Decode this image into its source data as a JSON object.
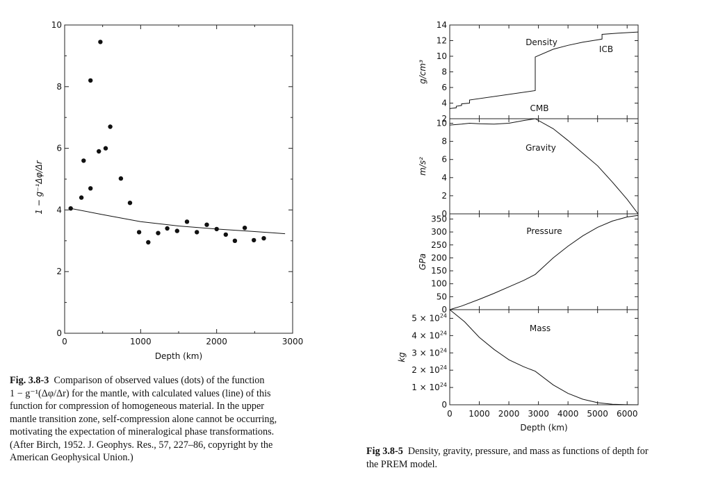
{
  "chart_data": [
    {
      "id": "fig-3-8-3",
      "type": "scatter",
      "xlabel": "Depth (km)",
      "ylabel": "1 − g⁻¹Δφ/Δr",
      "xlim": [
        0,
        3000
      ],
      "ylim": [
        0,
        10
      ],
      "xticks": [
        "0",
        "1000",
        "2000",
        "3000"
      ],
      "yticks": [
        "0",
        "2",
        "4",
        "6",
        "8",
        "10"
      ],
      "grid": false,
      "series": [
        {
          "kind": "points",
          "points": [
            [
              80,
              4.05
            ],
            [
              220,
              4.4
            ],
            [
              250,
              5.6
            ],
            [
              340,
              4.7
            ],
            [
              340,
              8.2
            ],
            [
              450,
              5.9
            ],
            [
              470,
              9.45
            ],
            [
              540,
              6.0
            ],
            [
              600,
              6.7
            ],
            [
              740,
              5.02
            ],
            [
              860,
              4.23
            ],
            [
              980,
              3.28
            ],
            [
              1100,
              2.95
            ],
            [
              1230,
              3.25
            ],
            [
              1350,
              3.4
            ],
            [
              1480,
              3.32
            ],
            [
              1610,
              3.62
            ],
            [
              1740,
              3.28
            ],
            [
              1870,
              3.52
            ],
            [
              2000,
              3.38
            ],
            [
              2120,
              3.2
            ],
            [
              2240,
              3.0
            ],
            [
              2370,
              3.42
            ],
            [
              2490,
              3.02
            ],
            [
              2620,
              3.08
            ]
          ]
        },
        {
          "kind": "line",
          "x": [
            80,
            500,
            1000,
            1500,
            2000,
            2500,
            2900
          ],
          "y": [
            4.05,
            3.85,
            3.62,
            3.48,
            3.38,
            3.3,
            3.23
          ]
        }
      ]
    },
    {
      "id": "fig-3-8-5",
      "type": "line",
      "xlabel": "Depth (km)",
      "xlim": [
        0,
        6371
      ],
      "xticks": [
        "0",
        "1000",
        "2000",
        "3000",
        "4000",
        "5000",
        "6000"
      ],
      "panels": [
        {
          "name": "Density",
          "ylabel": "g/cm³",
          "ylim": [
            2,
            14
          ],
          "yticks": [
            "2",
            "4",
            "6",
            "8",
            "10",
            "12",
            "14"
          ],
          "annotations": [
            "Density",
            "CMB",
            "ICB"
          ],
          "x": [
            0,
            220,
            220,
            400,
            400,
            670,
            670,
            2891,
            2891,
            3500,
            4000,
            4500,
            5000,
            5150,
            5150,
            5700,
            6371
          ],
          "y": [
            3.3,
            3.4,
            3.6,
            3.7,
            3.9,
            4.0,
            4.4,
            5.6,
            9.9,
            10.9,
            11.4,
            11.8,
            12.1,
            12.2,
            12.8,
            12.95,
            13.1
          ]
        },
        {
          "name": "Gravity",
          "ylabel": "m/s²",
          "ylim": [
            0,
            10.5
          ],
          "yticks": [
            "0",
            "2",
            "4",
            "6",
            "8",
            "10"
          ],
          "annotations": [
            "Gravity"
          ],
          "x": [
            0,
            400,
            670,
            1000,
            1500,
            2000,
            2500,
            2891,
            3500,
            4000,
            4500,
            5000,
            5500,
            6000,
            6371
          ],
          "y": [
            9.8,
            9.9,
            10.0,
            9.95,
            9.9,
            10.0,
            10.3,
            10.7,
            9.4,
            8.1,
            6.7,
            5.3,
            3.5,
            1.6,
            0
          ]
        },
        {
          "name": "Pressure",
          "ylabel": "GPa",
          "ylim": [
            0,
            370
          ],
          "yticks": [
            "0",
            "50",
            "100",
            "150",
            "200",
            "250",
            "300",
            "350"
          ],
          "annotations": [
            "Pressure"
          ],
          "x": [
            0,
            400,
            1000,
            1500,
            2000,
            2500,
            2891,
            3500,
            4000,
            4500,
            5000,
            5500,
            6000,
            6371
          ],
          "y": [
            0,
            14,
            40,
            63,
            88,
            113,
            136,
            200,
            245,
            285,
            318,
            342,
            358,
            364
          ]
        },
        {
          "name": "Mass",
          "ylabel": "kg",
          "ylim": [
            0,
            5.5
          ],
          "ytick_values": [
            0,
            1,
            2,
            3,
            4,
            5
          ],
          "yticks": [
            "0",
            "1 × 10",
            "2 × 10",
            "3 × 10",
            "4 × 10",
            "5 × 10"
          ],
          "ytick_exponent": "24",
          "annotations": [
            "Mass"
          ],
          "x": [
            0,
            500,
            1000,
            1500,
            2000,
            2500,
            2891,
            3500,
            4000,
            4500,
            5000,
            5500,
            6000,
            6371
          ],
          "y": [
            5.97,
            4.8,
            3.9,
            3.2,
            2.6,
            2.2,
            1.94,
            1.15,
            0.66,
            0.32,
            0.12,
            0.03,
            0.005,
            0
          ]
        }
      ]
    }
  ],
  "captions": {
    "left": {
      "label": "Fig. 3.8-3",
      "lines": [
        "Comparison of observed values (dots) of the function",
        "1 − g⁻¹(Δφ/Δr) for the mantle, with calculated values (line) of this",
        "function for compression of homogeneous material. In the upper",
        "mantle transition zone, self-compression alone cannot be occurring,",
        "motivating the expectation of mineralogical phase transformations.",
        "(After Birch, 1952. J. Geophys. Res., 57, 227–86, copyright by the",
        "American Geophysical Union.)"
      ]
    },
    "right": {
      "label": "Fig 3.8-5",
      "lines": [
        "Density, gravity, pressure, and mass as functions of depth for",
        "the PREM model."
      ]
    }
  }
}
